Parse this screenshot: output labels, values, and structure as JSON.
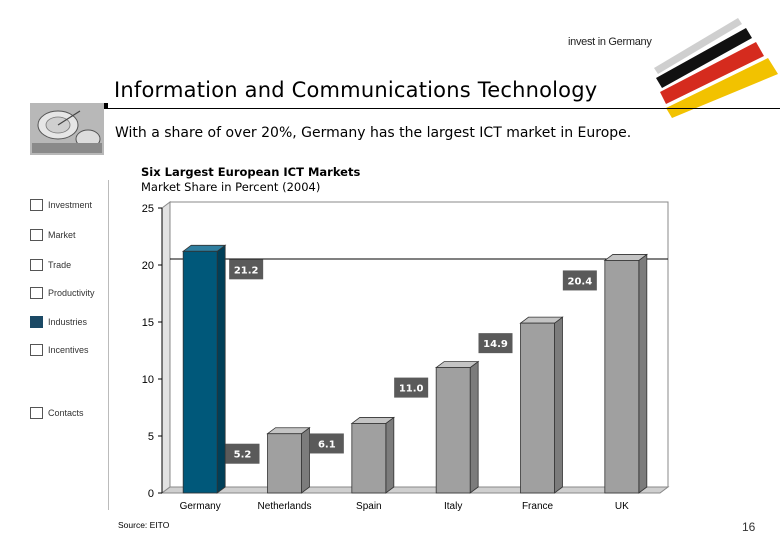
{
  "header": {
    "logo_text": "invest in Germany",
    "title": "Information and Communications Technology",
    "subtitle": "With a share of over 20%, Germany has the largest ICT market in Europe."
  },
  "nav": {
    "items": [
      {
        "label": "Investment",
        "active": false
      },
      {
        "label": "Market",
        "active": false
      },
      {
        "label": "Trade",
        "active": false
      },
      {
        "label": "Productivity",
        "active": false
      },
      {
        "label": "Industries",
        "active": true
      },
      {
        "label": "Incentives",
        "active": false
      },
      {
        "label": "Contacts",
        "active": false
      }
    ]
  },
  "colors": {
    "highlight_bar": "#00587a",
    "bar": "#a0a0a0",
    "label_box": "#5a5a5a",
    "active_nav": "#1b4965"
  },
  "chart_data": {
    "type": "bar",
    "title": "Six Largest European ICT Markets",
    "subtitle": "Market Share in Percent (2004)",
    "categories": [
      "Germany",
      "Netherlands",
      "Spain",
      "Italy",
      "France",
      "UK"
    ],
    "values": [
      21.2,
      5.2,
      6.1,
      11.0,
      14.9,
      20.4
    ],
    "value_labels": [
      "21.2",
      "5.2",
      "6.1",
      "11.0",
      "14.9",
      "20.4"
    ],
    "highlight": "Germany",
    "ylim": [
      0,
      25
    ],
    "yticks": [
      "0",
      "5",
      "10",
      "15",
      "20",
      "25"
    ],
    "xlabel": "",
    "ylabel": "",
    "grid": false
  },
  "footer": {
    "source": "Source: EITO",
    "page": "16"
  }
}
